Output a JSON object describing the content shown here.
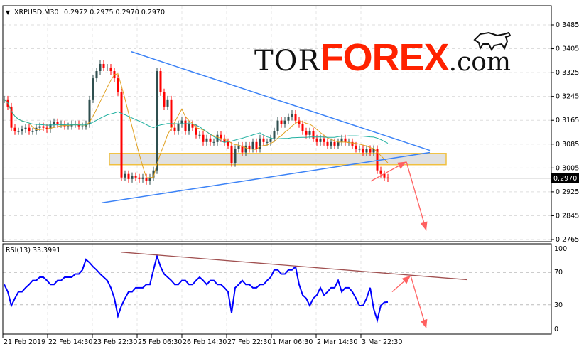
{
  "header": {
    "symbol_label": "XRPUSD,M30",
    "ohlc": "0.2972 0.2975 0.2970 0.2970"
  },
  "logo": {
    "part1": "TOR",
    "part2": "FOREX",
    "part3": ".com",
    "icon": "bull-icon"
  },
  "rsi_label": "RSI(13) 33.3991",
  "colors": {
    "bull": "#2f4f4f",
    "bear": "#ff0000",
    "ma_fast": "#e0a020",
    "ma_slow": "#20b0a0",
    "trendline": "#3b82f6",
    "zone_fill": "#d9d9d9",
    "zone_border": "#f0c040",
    "arrow": "#ff6060",
    "rsi": "#0000ff",
    "rsi_trendline": "#a05050",
    "current_price_bg": "#000000"
  },
  "chart_data": [
    {
      "type": "candlestick",
      "title": "XRPUSD,M30",
      "ylim": [
        0.2765,
        0.3525
      ],
      "y_ticks": [
        "0.3485",
        "0.3405",
        "0.3325",
        "0.3245",
        "0.3165",
        "0.3085",
        "0.3005",
        "0.2925",
        "0.2845",
        "0.2765"
      ],
      "x_ticks": [
        "21 Feb 2019",
        "22 Feb 14:30",
        "23 Feb 22:30",
        "25 Feb 06:30",
        "26 Feb 14:30",
        "27 Feb 22:30",
        "1 Mar 06:30",
        "2 Mar 14:30",
        "3 Mar 22:30"
      ],
      "current_price": "0.2970",
      "grid": true,
      "close": [
        0.3235,
        0.3211,
        0.314,
        0.3128,
        0.3128,
        0.3135,
        0.314,
        0.3128,
        0.3128,
        0.314,
        0.3145,
        0.314,
        0.3135,
        0.3152,
        0.3159,
        0.3152,
        0.3152,
        0.3145,
        0.3145,
        0.3152,
        0.3152,
        0.3145,
        0.3145,
        0.3152,
        0.3235,
        0.3306,
        0.333,
        0.3354,
        0.3342,
        0.3342,
        0.333,
        0.3306,
        0.3259,
        0.2973,
        0.2985,
        0.2968,
        0.2978,
        0.2973,
        0.2968,
        0.2973,
        0.2961,
        0.2973,
        0.2997,
        0.333,
        0.3259,
        0.3211,
        0.3235,
        0.314,
        0.3128,
        0.3152,
        0.3164,
        0.3128,
        0.3152,
        0.314,
        0.3116,
        0.3116,
        0.3092,
        0.3104,
        0.3092,
        0.3092,
        0.3116,
        0.3104,
        0.3092,
        0.308,
        0.3021,
        0.3069,
        0.308,
        0.3057,
        0.308,
        0.3069,
        0.3092,
        0.3069,
        0.3104,
        0.3092,
        0.3092,
        0.3104,
        0.3128,
        0.3164,
        0.3152,
        0.3164,
        0.3176,
        0.3187,
        0.3164,
        0.3152,
        0.3128,
        0.3116,
        0.3128,
        0.3104,
        0.3092,
        0.3104,
        0.3092,
        0.308,
        0.3092,
        0.308,
        0.3092,
        0.3104,
        0.3092,
        0.3092,
        0.308,
        0.3069,
        0.3069,
        0.3057,
        0.3069,
        0.3057,
        0.3069,
        0.2997,
        0.2985,
        0.2973,
        0.297
      ],
      "moving_averages": [
        "fast",
        "slow"
      ],
      "trendlines": [
        {
          "from": [
            35.8,
            0.3395
          ],
          "to": [
            119.8,
            0.3064
          ]
        },
        {
          "from": [
            27.4,
            0.2888
          ],
          "to": [
            119.8,
            0.3057
          ]
        }
      ],
      "zone": {
        "x": [
          29.6,
          124.4
        ],
        "price": [
          0.3016,
          0.3054
        ]
      },
      "arrows": [
        [
          103.2,
          0.2961
        ],
        [
          113.2,
          0.3026
        ],
        [
          118.8,
          0.2795
        ]
      ]
    },
    {
      "type": "line",
      "title": "RSI(13) 33.3991",
      "ylim": [
        0,
        100
      ],
      "y_ticks": [
        "100",
        "70",
        "30",
        "0"
      ],
      "grid": true,
      "values": [
        55,
        46,
        29,
        38,
        46,
        46,
        51,
        55,
        60,
        60,
        64,
        64,
        60,
        55,
        55,
        60,
        60,
        64,
        64,
        64,
        68,
        68,
        73,
        86,
        82,
        77,
        73,
        68,
        64,
        60,
        51,
        38,
        16,
        29,
        38,
        46,
        46,
        51,
        51,
        51,
        55,
        55,
        73,
        90,
        77,
        68,
        64,
        60,
        55,
        55,
        60,
        60,
        55,
        55,
        60,
        64,
        60,
        55,
        60,
        60,
        55,
        55,
        51,
        46,
        20,
        51,
        55,
        60,
        55,
        55,
        51,
        51,
        55,
        55,
        60,
        64,
        73,
        73,
        68,
        68,
        73,
        73,
        77,
        55,
        42,
        38,
        29,
        38,
        42,
        51,
        42,
        46,
        51,
        51,
        60,
        46,
        51,
        51,
        46,
        38,
        29,
        29,
        38,
        51,
        25,
        11,
        29,
        33,
        33.4
      ],
      "trendline": {
        "from": [
          32.8,
          95
        ],
        "to": [
          130.2,
          61
        ]
      },
      "arrows": [
        [
          109.2,
          46
        ],
        [
          114.4,
          66
        ],
        [
          118.8,
          1
        ]
      ]
    }
  ]
}
